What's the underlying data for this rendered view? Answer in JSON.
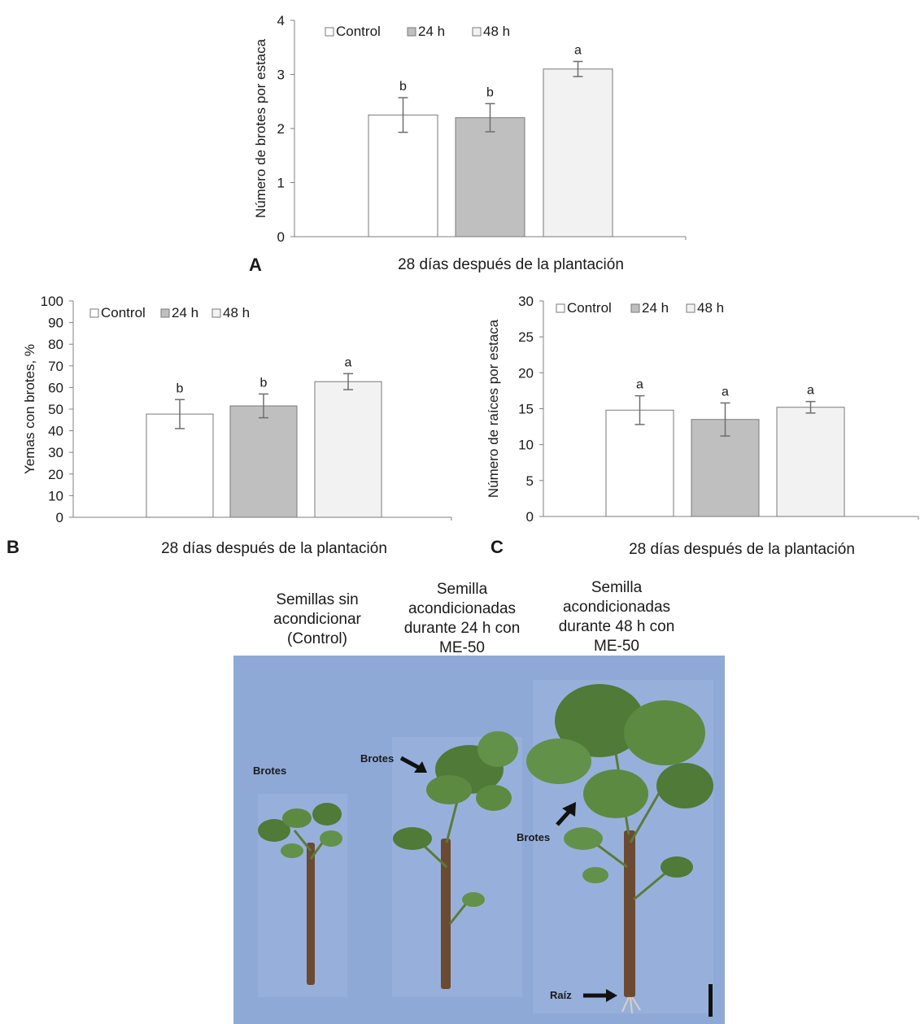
{
  "panel_letters": {
    "A": "A",
    "B": "B",
    "C": "C"
  },
  "chart_data": [
    {
      "type": "bar",
      "panel": "A",
      "ylabel": "Número de brotes por estaca",
      "xlabel": "28 días después de la plantación",
      "ylim": [
        0,
        4
      ],
      "yticks": [
        "0",
        "1",
        "2",
        "3",
        "4"
      ],
      "series": [
        {
          "name": "Control",
          "value": 2.25,
          "error": 0.32,
          "letter": "b",
          "color": "#ffffff"
        },
        {
          "name": "24 h",
          "value": 2.2,
          "error": 0.26,
          "letter": "b",
          "color": "#bfbfbf"
        },
        {
          "name": "48 h",
          "value": 3.1,
          "error": 0.14,
          "letter": "a",
          "color": "#f2f2f2"
        }
      ],
      "legend": "top-left",
      "grid": false
    },
    {
      "type": "bar",
      "panel": "B",
      "ylabel": "Yemas con brotes, %",
      "xlabel": "28 días después de la plantación",
      "ylim": [
        0,
        100
      ],
      "yticks": [
        "0",
        "10",
        "20",
        "30",
        "40",
        "50",
        "60",
        "70",
        "80",
        "90",
        "100"
      ],
      "series": [
        {
          "name": "Control",
          "value": 47.7,
          "error": 6.7,
          "letter": "b",
          "color": "#ffffff"
        },
        {
          "name": "24 h",
          "value": 51.5,
          "error": 5.5,
          "letter": "b",
          "color": "#bfbfbf"
        },
        {
          "name": "48 h",
          "value": 62.7,
          "error": 3.7,
          "letter": "a",
          "color": "#f2f2f2"
        }
      ],
      "legend": "top-left",
      "grid": false
    },
    {
      "type": "bar",
      "panel": "C",
      "ylabel": "Número de raíces por estaca",
      "xlabel": "28 días después de la plantación",
      "ylim": [
        0,
        30
      ],
      "yticks": [
        "0",
        "5",
        "10",
        "15",
        "20",
        "25",
        "30"
      ],
      "series": [
        {
          "name": "Control",
          "value": 14.8,
          "error": 2.0,
          "letter": "a",
          "color": "#ffffff"
        },
        {
          "name": "24 h",
          "value": 13.5,
          "error": 2.3,
          "letter": "a",
          "color": "#bfbfbf"
        },
        {
          "name": "48 h",
          "value": 15.2,
          "error": 0.8,
          "letter": "a",
          "color": "#f2f2f2"
        }
      ],
      "legend": "top-left",
      "grid": false
    }
  ],
  "photo": {
    "captions": [
      [
        "Semillas sin",
        "acondicionar",
        "(Control)"
      ],
      [
        "Semilla",
        "acondicionadas",
        "durante 24 h con",
        "ME-50"
      ],
      [
        "Semilla",
        "acondicionadas",
        "durante 48 h con",
        "ME-50"
      ]
    ],
    "labels": {
      "brotes_1": "Brotes",
      "brotes_2": "Brotes",
      "brotes_3": "Brotes",
      "raiz": "Raíz"
    },
    "background_color": "#8fa9d6"
  }
}
